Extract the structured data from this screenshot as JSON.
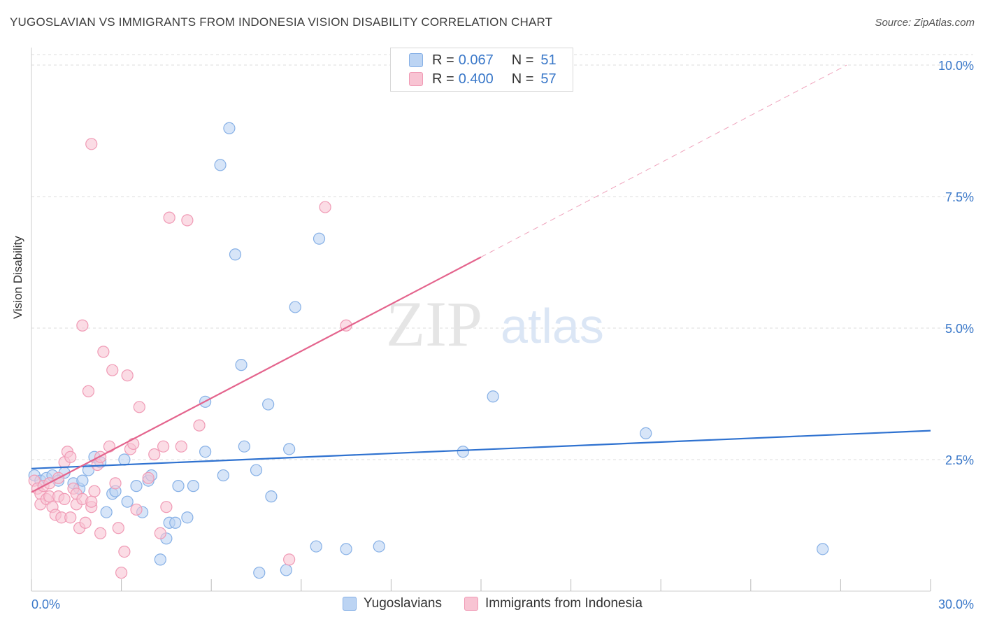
{
  "title": "YUGOSLAVIAN VS IMMIGRANTS FROM INDONESIA VISION DISABILITY CORRELATION CHART",
  "source": "Source: ZipAtlas.com",
  "watermark": {
    "zip": "ZIP",
    "atlas": "atlas"
  },
  "legend": {
    "r_label": "R =",
    "n_label": "N =",
    "rows": [
      {
        "r": "0.067",
        "n": "51"
      },
      {
        "r": "0.400",
        "n": "57"
      }
    ]
  },
  "colors": {
    "blue_fill": "#bcd4f3",
    "blue_stroke": "#86b0e6",
    "blue_line": "#2f72d0",
    "pink_fill": "#f8c4d3",
    "pink_stroke": "#f09ab5",
    "pink_line": "#e4648d",
    "tick_text": "#3a78c9"
  },
  "chart_data": {
    "type": "scatter",
    "ylabel": "Vision Disability",
    "xlim": [
      0,
      30
    ],
    "ylim": [
      0,
      10.2
    ],
    "x_ticks": [
      "0.0%",
      "30.0%"
    ],
    "y_ticks": [
      {
        "value": 2.5,
        "label": "2.5%"
      },
      {
        "value": 5.0,
        "label": "5.0%"
      },
      {
        "value": 7.5,
        "label": "7.5%"
      },
      {
        "value": 10.0,
        "label": "10.0%"
      }
    ],
    "grid": true,
    "series": [
      {
        "name": "Yugoslavians",
        "color": "blue",
        "trend": {
          "x0": 0,
          "y0": 2.33,
          "x1": 30,
          "y1": 3.05,
          "dashed_from": null
        },
        "points": [
          [
            0.1,
            2.2
          ],
          [
            0.3,
            2.1
          ],
          [
            0.5,
            2.15
          ],
          [
            0.7,
            2.2
          ],
          [
            0.9,
            2.1
          ],
          [
            1.1,
            2.25
          ],
          [
            1.4,
            2.05
          ],
          [
            1.6,
            1.95
          ],
          [
            1.7,
            2.1
          ],
          [
            1.9,
            2.3
          ],
          [
            2.1,
            2.55
          ],
          [
            2.3,
            2.45
          ],
          [
            2.5,
            1.5
          ],
          [
            2.7,
            1.85
          ],
          [
            2.8,
            1.9
          ],
          [
            3.1,
            2.5
          ],
          [
            3.2,
            1.7
          ],
          [
            3.5,
            2.0
          ],
          [
            3.7,
            1.5
          ],
          [
            3.9,
            2.1
          ],
          [
            4.0,
            2.2
          ],
          [
            4.3,
            0.6
          ],
          [
            4.5,
            1.0
          ],
          [
            4.6,
            1.3
          ],
          [
            4.8,
            1.3
          ],
          [
            4.9,
            2.0
          ],
          [
            5.2,
            1.4
          ],
          [
            5.4,
            2.0
          ],
          [
            5.8,
            3.6
          ],
          [
            5.8,
            2.65
          ],
          [
            6.3,
            8.1
          ],
          [
            6.4,
            2.2
          ],
          [
            6.6,
            8.8
          ],
          [
            6.8,
            6.4
          ],
          [
            7.0,
            4.3
          ],
          [
            7.1,
            2.75
          ],
          [
            7.5,
            2.3
          ],
          [
            7.6,
            0.35
          ],
          [
            7.9,
            3.55
          ],
          [
            8.0,
            1.8
          ],
          [
            8.5,
            0.4
          ],
          [
            8.6,
            2.7
          ],
          [
            8.8,
            5.4
          ],
          [
            9.5,
            0.85
          ],
          [
            9.6,
            6.7
          ],
          [
            10.5,
            0.8
          ],
          [
            11.6,
            0.85
          ],
          [
            14.4,
            2.65
          ],
          [
            15.4,
            3.7
          ],
          [
            20.5,
            3.0
          ],
          [
            26.4,
            0.8
          ]
        ]
      },
      {
        "name": "Immigrants from Indonesia",
        "color": "pink",
        "trend": {
          "x0": 0,
          "y0": 1.88,
          "x1": 15,
          "y1": 6.35,
          "dashed_from": 15,
          "dashed_x1": 27.2,
          "dashed_y1": 10.0
        },
        "points": [
          [
            0.1,
            2.1
          ],
          [
            0.2,
            1.95
          ],
          [
            0.3,
            1.85
          ],
          [
            0.3,
            1.65
          ],
          [
            0.4,
            2.0
          ],
          [
            0.5,
            1.75
          ],
          [
            0.6,
            1.8
          ],
          [
            0.6,
            2.05
          ],
          [
            0.7,
            1.6
          ],
          [
            0.8,
            1.45
          ],
          [
            0.9,
            1.8
          ],
          [
            0.9,
            2.15
          ],
          [
            1.0,
            1.4
          ],
          [
            1.1,
            1.75
          ],
          [
            1.1,
            2.45
          ],
          [
            1.2,
            2.65
          ],
          [
            1.3,
            1.4
          ],
          [
            1.3,
            2.55
          ],
          [
            1.4,
            1.95
          ],
          [
            1.5,
            1.65
          ],
          [
            1.5,
            1.85
          ],
          [
            1.6,
            1.2
          ],
          [
            1.7,
            1.75
          ],
          [
            1.7,
            5.05
          ],
          [
            1.8,
            1.3
          ],
          [
            1.9,
            3.8
          ],
          [
            2.0,
            1.6
          ],
          [
            2.0,
            1.7
          ],
          [
            2.0,
            8.5
          ],
          [
            2.1,
            1.9
          ],
          [
            2.2,
            2.4
          ],
          [
            2.3,
            1.1
          ],
          [
            2.3,
            2.55
          ],
          [
            2.4,
            4.55
          ],
          [
            2.6,
            2.75
          ],
          [
            2.7,
            4.2
          ],
          [
            2.8,
            2.05
          ],
          [
            2.9,
            1.2
          ],
          [
            3.0,
            0.35
          ],
          [
            3.1,
            0.75
          ],
          [
            3.2,
            4.1
          ],
          [
            3.3,
            2.7
          ],
          [
            3.4,
            2.8
          ],
          [
            3.5,
            1.55
          ],
          [
            3.6,
            3.5
          ],
          [
            3.9,
            2.15
          ],
          [
            4.1,
            2.6
          ],
          [
            4.3,
            1.1
          ],
          [
            4.4,
            2.75
          ],
          [
            4.5,
            1.6
          ],
          [
            4.6,
            7.1
          ],
          [
            5.0,
            2.75
          ],
          [
            5.2,
            7.05
          ],
          [
            5.6,
            3.15
          ],
          [
            8.6,
            0.6
          ],
          [
            9.8,
            7.3
          ],
          [
            10.5,
            5.05
          ]
        ]
      }
    ]
  },
  "bottom_legend": [
    "Yugoslavians",
    "Immigrants from Indonesia"
  ]
}
